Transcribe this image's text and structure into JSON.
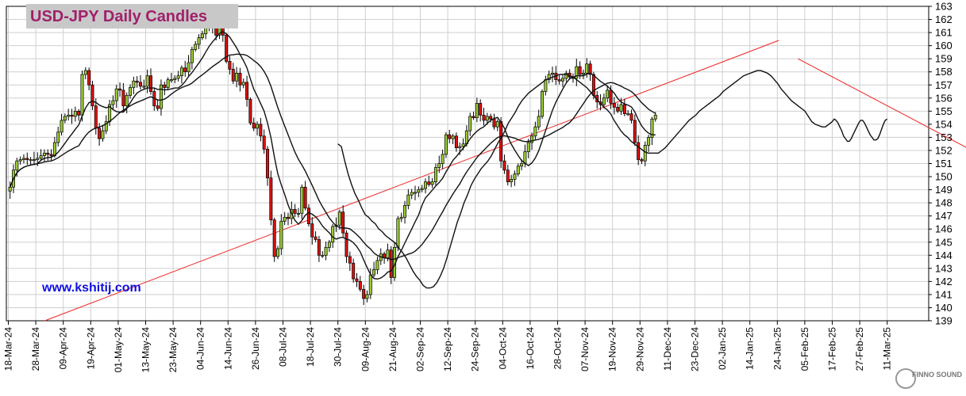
{
  "chart_data": {
    "type": "candlestick",
    "title": "USD-JPY Daily Candles",
    "ylim": [
      139,
      163
    ],
    "yticks": [
      139,
      140,
      141,
      142,
      143,
      144,
      145,
      146,
      147,
      148,
      149,
      150,
      151,
      152,
      153,
      154,
      155,
      156,
      157,
      158,
      159,
      160,
      161,
      162,
      163
    ],
    "xtick_labels": [
      "18-Mar-24",
      "28-Mar-24",
      "09-Apr-24",
      "19-Apr-24",
      "01-May-24",
      "13-May-24",
      "23-May-24",
      "04-Jun-24",
      "14-Jun-24",
      "26-Jun-24",
      "08-Jul-24",
      "18-Jul-24",
      "30-Jul-24",
      "09-Aug-24",
      "21-Aug-24",
      "02-Sep-24",
      "12-Sep-24",
      "24-Sep-24",
      "04-Oct-24",
      "16-Oct-24",
      "28-Oct-24",
      "07-Nov-24",
      "19-Nov-24",
      "29-Nov-24",
      "11-Dec-24",
      "23-Dec-24",
      "02-Jan-25",
      "14-Jan-25",
      "24-Jan-25",
      "05-Feb-25",
      "17-Feb-25",
      "27-Feb-25",
      "11-Mar-25"
    ],
    "bars_per_label": 8,
    "closes": [
      149.2,
      150.5,
      151.2,
      151.3,
      151.4,
      151.3,
      151.3,
      151.3,
      151.4,
      151.6,
      151.8,
      151.7,
      151.6,
      152.6,
      153.4,
      154.3,
      154.6,
      154.7,
      154.6,
      155.0,
      154.7,
      157.8,
      158.1,
      157.0,
      155.4,
      153.7,
      152.9,
      153.5,
      154.2,
      155.5,
      155.8,
      156.7,
      156.6,
      155.4,
      156.2,
      156.8,
      157.3,
      157.2,
      156.9,
      156.9,
      157.7,
      156.5,
      155.4,
      155.2,
      157.0,
      156.8,
      157.4,
      157.4,
      157.5,
      157.7,
      158.3,
      158.0,
      158.7,
      159.7,
      160.1,
      160.6,
      160.9,
      161.6,
      161.6,
      161.4,
      160.8,
      161.7,
      160.8,
      158.8,
      158.2,
      157.3,
      157.9,
      157.0,
      157.2,
      155.9,
      154.1,
      153.7,
      154.0,
      153.1,
      152.1,
      149.9,
      146.7,
      143.9,
      144.5,
      146.6,
      146.9,
      146.8,
      147.5,
      147.2,
      147.2,
      149.2,
      147.6,
      146.4,
      145.4,
      145.2,
      144.0,
      144.0,
      144.6,
      145.0,
      146.2,
      146.3,
      147.3,
      145.7,
      143.9,
      143.4,
      142.2,
      142.0,
      141.4,
      140.7,
      141.0,
      142.5,
      142.9,
      143.6,
      144.1,
      143.8,
      144.4,
      142.3,
      144.6,
      146.8,
      146.9,
      147.8,
      148.6,
      148.8,
      148.8,
      149.0,
      149.1,
      149.6,
      149.4,
      149.6,
      150.7,
      151.0,
      151.7,
      153.2,
      152.9,
      153.1,
      152.2,
      152.3,
      152.5,
      153.5,
      154.6,
      154.5,
      155.6,
      154.7,
      154.3,
      154.6,
      154.4,
      153.8,
      154.2,
      151.2,
      150.5,
      149.6,
      149.8,
      150.2,
      150.8,
      151.0,
      151.9,
      152.6,
      153.1,
      153.8,
      154.6,
      156.5,
      157.4,
      157.8,
      157.9,
      157.4,
      157.3,
      157.5,
      157.9,
      157.6,
      157.5,
      158.4,
      157.8,
      157.9,
      158.6,
      157.8,
      156.2,
      155.7,
      155.5,
      156.0,
      156.6,
      155.6,
      155.3,
      155.0,
      155.5,
      154.8,
      154.8,
      154.3,
      152.6,
      151.3,
      151.2,
      152.4,
      153.0,
      154.4,
      154.7
    ],
    "price_line": {
      "from_label": "30-Jul-24",
      "to_label": "17-Feb-25",
      "levels": [
        152.5,
        152.3,
        151.2,
        150.2,
        149.4,
        148.7,
        148.2,
        147.6,
        147.1,
        146.9,
        146.6,
        146.4,
        146.0,
        145.8,
        145.5,
        145.3,
        145.1,
        144.9,
        144.5,
        144.2,
        143.8,
        143.3,
        142.8,
        142.4,
        142.1,
        141.7,
        141.5,
        141.5,
        141.6,
        141.9,
        142.4,
        143.0,
        143.8,
        144.7,
        145.6,
        146.5,
        147.2,
        148.0,
        148.6,
        149.3,
        149.8,
        150.2,
        150.6,
        150.9,
        151.2,
        151.6,
        152.1,
        152.6,
        153.0,
        153.5,
        154.1,
        154.5,
        154.9,
        155.4,
        155.8,
        156.1,
        156.4,
        156.6,
        156.8,
        157.0,
        157.2,
        157.4,
        157.5,
        157.6,
        157.7,
        157.8,
        157.8,
        157.8,
        157.7,
        157.6,
        157.4,
        157.2,
        157.0,
        156.8,
        156.5,
        156.2,
        155.9,
        155.6,
        155.3,
        155.1,
        154.8,
        154.3,
        153.9,
        153.5,
        153.2,
        153.0,
        152.7,
        152.5,
        152.3,
        152.1,
        151.9,
        151.8,
        151.8,
        151.8,
        151.8,
        152.0,
        152.2,
        152.5,
        152.8,
        153.1,
        153.4,
        153.7,
        154.0,
        154.3,
        154.5,
        154.7,
        155.0,
        155.2,
        155.4,
        155.6,
        155.8,
        156.0,
        156.2,
        156.5,
        156.7,
        156.9,
        157.1,
        157.3,
        157.5,
        157.7,
        157.8,
        157.9,
        158.0,
        158.1,
        158.1,
        158.0,
        157.9,
        157.7,
        157.4,
        157.1,
        156.7,
        156.4,
        156.1,
        155.8,
        155.6,
        155.4,
        155.2,
        155.0,
        154.6,
        154.2,
        154.0,
        153.9,
        153.8,
        153.8,
        154.0,
        154.2
      ]
    },
    "forecast_path": [
      154.4,
      154.3,
      154.1,
      153.8,
      153.5,
      153.1,
      152.9,
      152.7,
      152.7,
      152.9,
      153.2,
      153.5,
      153.8,
      154.1,
      154.3,
      154.3,
      154.1,
      153.8,
      153.5,
      153.2,
      153.0,
      152.8,
      152.8,
      152.9,
      153.2,
      153.6,
      154.0,
      154.3,
      154.4
    ],
    "trend_lines": [
      {
        "x1": 140.0,
        "y1": 139.0,
        "x2": 159.1,
        "y2": 160.4
      },
      {
        "x1": 159.6,
        "y1": 159.0,
        "x2": 165.1,
        "y2": 150.5
      }
    ],
    "colors": {
      "up": "#99cc33",
      "down": "#dd1111",
      "trend": "#ee2222",
      "ma": "#111111",
      "grid": "#cfcfcf"
    }
  },
  "header": {
    "title": "USD-JPY Daily Candles",
    "site": "www.kshitij.com"
  },
  "watermark": {
    "text": "FINNO SOUND"
  }
}
